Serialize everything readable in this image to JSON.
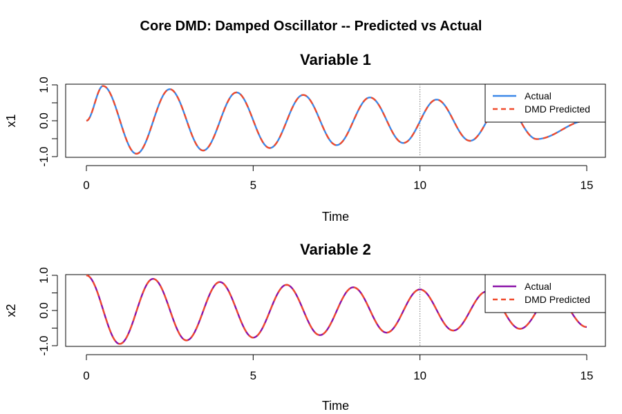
{
  "figure_title": "Core DMD: Damped Oscillator -- Predicted vs Actual",
  "chart_data": [
    {
      "type": "line",
      "title": "Variable 1",
      "xlabel": "Time",
      "ylabel": "x1",
      "xlim": [
        0,
        15
      ],
      "ylim": [
        -1.0,
        1.0
      ],
      "x_ticks": [
        0,
        5,
        10,
        15
      ],
      "x_tick_labels": [
        "0",
        "5",
        "10",
        "15"
      ],
      "y_ticks": [
        -1.0,
        0.0,
        1.0
      ],
      "y_tick_labels": [
        "-1.0",
        "0.0",
        "1.0"
      ],
      "vline_x": 10,
      "legend_position": "top-right",
      "grid": false,
      "x": [
        0,
        0.5,
        1.5,
        2.5,
        3.5,
        4.5,
        5.5,
        6.5,
        7.5,
        8.5,
        9.5,
        10.5,
        11.5,
        12.5,
        13.5,
        15
      ],
      "series": [
        {
          "name": "Actual",
          "color": "#3a87e8",
          "style": "solid",
          "values": [
            0.0,
            0.97,
            -0.92,
            0.88,
            -0.83,
            0.79,
            -0.76,
            0.72,
            -0.68,
            0.65,
            -0.62,
            0.59,
            -0.56,
            0.53,
            -0.51,
            0.0
          ]
        },
        {
          "name": "DMD Predicted",
          "color": "#f04a2c",
          "style": "dashed",
          "values": [
            0.0,
            0.97,
            -0.92,
            0.88,
            -0.83,
            0.79,
            -0.76,
            0.72,
            -0.68,
            0.65,
            -0.62,
            0.59,
            -0.56,
            0.53,
            -0.51,
            0.0
          ]
        }
      ]
    },
    {
      "type": "line",
      "title": "Variable 2",
      "xlabel": "Time",
      "ylabel": "x2",
      "xlim": [
        0,
        15
      ],
      "ylim": [
        -1.0,
        1.0
      ],
      "x_ticks": [
        0,
        5,
        10,
        15
      ],
      "x_tick_labels": [
        "0",
        "5",
        "10",
        "15"
      ],
      "y_ticks": [
        -1.0,
        0.0,
        1.0
      ],
      "y_tick_labels": [
        "-1.0",
        "0.0",
        "1.0"
      ],
      "vline_x": 10,
      "legend_position": "top-right",
      "grid": false,
      "x": [
        0,
        1,
        2,
        3,
        4,
        5,
        6,
        7,
        8,
        9,
        10,
        11,
        12,
        13,
        14,
        15
      ],
      "series": [
        {
          "name": "Actual",
          "color": "#8a12a8",
          "style": "solid",
          "values": [
            1.0,
            -0.95,
            0.9,
            -0.85,
            0.81,
            -0.77,
            0.73,
            -0.7,
            0.66,
            -0.63,
            0.6,
            -0.57,
            0.54,
            -0.52,
            0.49,
            -0.47
          ]
        },
        {
          "name": "DMD Predicted",
          "color": "#f04a2c",
          "style": "dashed",
          "values": [
            1.0,
            -0.95,
            0.9,
            -0.85,
            0.81,
            -0.77,
            0.73,
            -0.7,
            0.66,
            -0.63,
            0.6,
            -0.57,
            0.54,
            -0.52,
            0.49,
            -0.47
          ]
        }
      ]
    }
  ]
}
